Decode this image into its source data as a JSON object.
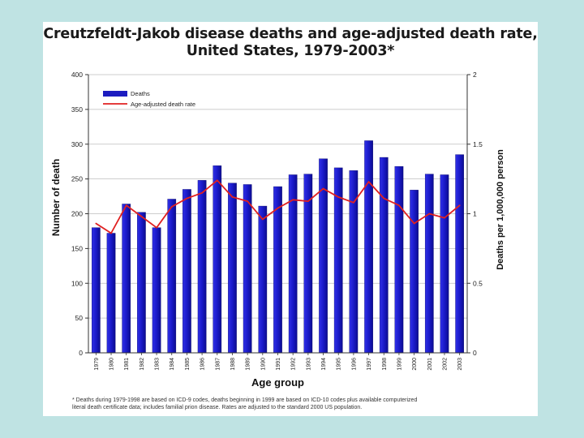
{
  "chart_data": {
    "type": "bar",
    "title": "Creutzfeldt-Jakob disease deaths and age-adjusted death rate,",
    "subtitle": "United States, 1979-2003*",
    "xlabel": "Age group",
    "ylabel": "Number of death",
    "y2label": "Deaths per 1,000,000 person",
    "ylim": [
      0,
      400
    ],
    "y2lim": [
      0,
      2
    ],
    "yticks": [
      "0",
      "50",
      "100",
      "150",
      "200",
      "250",
      "300",
      "350",
      "400"
    ],
    "y2ticks": [
      "0",
      "0.5",
      "1",
      "1.5",
      "2"
    ],
    "legend_position": "top-left",
    "categories": [
      "1979",
      "1980",
      "1981",
      "1982",
      "1983",
      "1984",
      "1985",
      "1986",
      "1987",
      "1988",
      "1989",
      "1990",
      "1991",
      "1992",
      "1993",
      "1994",
      "1995",
      "1996",
      "1997",
      "1998",
      "1999",
      "2000",
      "2001",
      "2002",
      "2003"
    ],
    "series": [
      {
        "name": "Deaths",
        "type": "bar",
        "axis": "left",
        "color": "#1c1cc0",
        "values": [
          180,
          172,
          214,
          202,
          180,
          221,
          235,
          248,
          269,
          244,
          242,
          211,
          239,
          256,
          257,
          279,
          266,
          262,
          305,
          281,
          268,
          234,
          257,
          256,
          285
        ]
      },
      {
        "name": "Age-adjusted death rate",
        "type": "line",
        "axis": "right",
        "color": "#e02020",
        "values": [
          0.93,
          0.86,
          1.06,
          0.98,
          0.9,
          1.05,
          1.11,
          1.15,
          1.24,
          1.12,
          1.09,
          0.96,
          1.04,
          1.1,
          1.09,
          1.18,
          1.12,
          1.08,
          1.23,
          1.11,
          1.06,
          0.93,
          1.0,
          0.97,
          1.06
        ]
      }
    ]
  },
  "footnote": {
    "line1": "* Deaths during 1979-1998 are based on ICD-9 codes, deaths beginning in 1999 are based on ICD-10 codes plus available computerized",
    "line2": "literal death certificate data; includes familial prion disease.  Rates are adjusted to the standard 2000 US population."
  }
}
